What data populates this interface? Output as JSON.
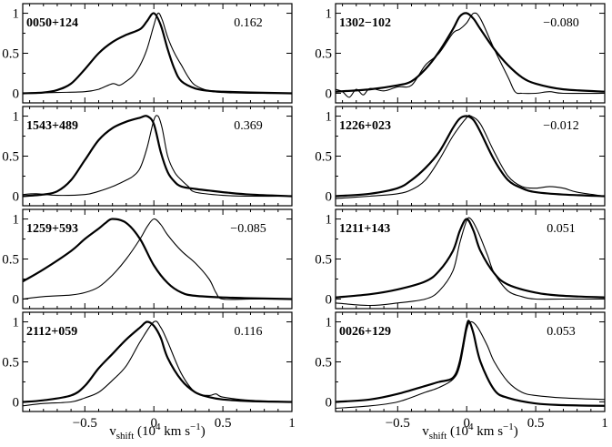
{
  "chart_data": [
    {
      "type": "line",
      "object": "0050+124",
      "value_label": "0.162",
      "series": [
        {
          "name": "thick",
          "x": [
            -0.95,
            -0.8,
            -0.7,
            -0.6,
            -0.5,
            -0.4,
            -0.3,
            -0.2,
            -0.1,
            -0.05,
            0.0,
            0.05,
            0.1,
            0.15,
            0.2,
            0.3,
            0.4,
            0.5,
            0.7,
            1.0
          ],
          "y": [
            0.0,
            0.01,
            0.04,
            0.12,
            0.3,
            0.5,
            0.64,
            0.73,
            0.8,
            0.9,
            1.0,
            0.85,
            0.55,
            0.3,
            0.15,
            0.06,
            0.03,
            0.02,
            0.01,
            0.0
          ]
        },
        {
          "name": "thin",
          "x": [
            -0.95,
            -0.7,
            -0.5,
            -0.4,
            -0.3,
            -0.25,
            -0.2,
            -0.15,
            -0.1,
            -0.05,
            0.0,
            0.03,
            0.06,
            0.1,
            0.15,
            0.2,
            0.25,
            0.3,
            0.4,
            0.5,
            0.7,
            1.0
          ],
          "y": [
            0.0,
            0.01,
            0.02,
            0.05,
            0.12,
            0.1,
            0.15,
            0.22,
            0.35,
            0.55,
            0.85,
            1.0,
            0.92,
            0.7,
            0.5,
            0.35,
            0.2,
            0.1,
            0.03,
            0.01,
            0.0,
            0.0
          ]
        }
      ],
      "xlim": [
        -0.95,
        1.0
      ],
      "ylim": [
        -0.12,
        1.12
      ]
    },
    {
      "type": "line",
      "object": "1543+489",
      "value_label": "0.369",
      "series": [
        {
          "name": "thick",
          "x": [
            -0.95,
            -0.8,
            -0.7,
            -0.6,
            -0.5,
            -0.4,
            -0.3,
            -0.2,
            -0.1,
            -0.05,
            0.0,
            0.05,
            0.1,
            0.15,
            0.2,
            0.3,
            0.4,
            0.5,
            0.7,
            1.0
          ],
          "y": [
            0.0,
            0.02,
            0.06,
            0.2,
            0.45,
            0.7,
            0.85,
            0.93,
            0.98,
            1.0,
            0.9,
            0.55,
            0.3,
            0.18,
            0.12,
            0.09,
            0.07,
            0.05,
            0.02,
            0.0
          ]
        },
        {
          "name": "thin",
          "x": [
            -0.95,
            -0.85,
            -0.7,
            -0.5,
            -0.4,
            -0.3,
            -0.2,
            -0.15,
            -0.1,
            -0.05,
            0.0,
            0.03,
            0.06,
            0.1,
            0.15,
            0.2,
            0.25,
            0.3,
            0.5,
            0.7,
            1.0
          ],
          "y": [
            0.02,
            0.03,
            0.01,
            0.02,
            0.06,
            0.12,
            0.2,
            0.25,
            0.35,
            0.6,
            0.95,
            1.0,
            0.85,
            0.5,
            0.3,
            0.2,
            0.12,
            0.05,
            0.01,
            0.0,
            0.0
          ]
        }
      ],
      "xlim": [
        -0.95,
        1.0
      ],
      "ylim": [
        -0.12,
        1.12
      ]
    },
    {
      "type": "line",
      "object": "1259+593",
      "value_label": "−0.085",
      "series": [
        {
          "name": "thick",
          "x": [
            -0.95,
            -0.8,
            -0.6,
            -0.5,
            -0.4,
            -0.35,
            -0.3,
            -0.2,
            -0.1,
            0.0,
            0.1,
            0.2,
            0.3,
            0.5,
            0.7,
            1.0
          ],
          "y": [
            0.22,
            0.37,
            0.6,
            0.75,
            0.88,
            0.95,
            1.0,
            0.95,
            0.75,
            0.42,
            0.2,
            0.08,
            0.04,
            0.02,
            0.01,
            0.0
          ]
        },
        {
          "name": "thin",
          "x": [
            -0.95,
            -0.8,
            -0.6,
            -0.5,
            -0.4,
            -0.3,
            -0.2,
            -0.1,
            -0.05,
            0.0,
            0.05,
            0.1,
            0.2,
            0.3,
            0.4,
            0.45,
            0.5,
            0.7,
            1.0
          ],
          "y": [
            0.0,
            0.03,
            0.05,
            0.08,
            0.15,
            0.3,
            0.5,
            0.75,
            0.9,
            1.0,
            0.93,
            0.8,
            0.6,
            0.45,
            0.25,
            0.08,
            0.0,
            0.0,
            0.0
          ]
        }
      ],
      "xlim": [
        -0.95,
        1.0
      ],
      "ylim": [
        -0.12,
        1.12
      ]
    },
    {
      "type": "line",
      "object": "2112+059",
      "value_label": "0.116",
      "series": [
        {
          "name": "thick",
          "x": [
            -0.95,
            -0.8,
            -0.6,
            -0.5,
            -0.4,
            -0.3,
            -0.2,
            -0.1,
            -0.05,
            0.0,
            0.05,
            0.1,
            0.2,
            0.3,
            0.4,
            0.5,
            0.7,
            1.0
          ],
          "y": [
            0.0,
            0.02,
            0.08,
            0.2,
            0.42,
            0.6,
            0.78,
            0.93,
            1.0,
            0.95,
            0.8,
            0.55,
            0.27,
            0.12,
            0.06,
            0.03,
            0.01,
            0.0
          ]
        },
        {
          "name": "thin",
          "x": [
            -0.95,
            -0.8,
            -0.6,
            -0.5,
            -0.4,
            -0.3,
            -0.2,
            -0.1,
            0.0,
            0.05,
            0.1,
            0.2,
            0.3,
            0.4,
            0.45,
            0.5,
            0.7,
            1.0
          ],
          "y": [
            -0.05,
            -0.02,
            0.0,
            0.05,
            0.12,
            0.27,
            0.45,
            0.75,
            1.0,
            0.93,
            0.75,
            0.35,
            0.12,
            0.08,
            0.1,
            0.06,
            0.02,
            0.0
          ]
        }
      ],
      "xlim": [
        -0.95,
        1.0
      ],
      "ylim": [
        -0.12,
        1.12
      ]
    },
    {
      "type": "line",
      "object": "1302−102",
      "value_label": "−0.080",
      "series": [
        {
          "name": "thick",
          "x": [
            -0.95,
            -0.7,
            -0.5,
            -0.4,
            -0.3,
            -0.2,
            -0.1,
            -0.05,
            0.0,
            0.05,
            0.1,
            0.2,
            0.3,
            0.4,
            0.5,
            0.7,
            1.0
          ],
          "y": [
            0.02,
            0.05,
            0.1,
            0.15,
            0.3,
            0.52,
            0.8,
            0.96,
            1.0,
            0.93,
            0.8,
            0.55,
            0.35,
            0.2,
            0.12,
            0.05,
            0.02
          ]
        },
        {
          "name": "thin",
          "x": [
            -0.95,
            -0.9,
            -0.85,
            -0.8,
            -0.75,
            -0.7,
            -0.6,
            -0.5,
            -0.4,
            -0.3,
            -0.2,
            -0.1,
            -0.05,
            0.0,
            0.05,
            0.1,
            0.2,
            0.3,
            0.35,
            0.4,
            0.5,
            0.6,
            0.7,
            1.0
          ],
          "y": [
            0.05,
            0.02,
            -0.05,
            0.05,
            -0.02,
            0.06,
            0.03,
            0.08,
            0.1,
            0.35,
            0.5,
            0.75,
            0.8,
            0.88,
            1.0,
            0.93,
            0.55,
            0.2,
            0.02,
            0.0,
            0.0,
            0.02,
            0.0,
            0.0
          ]
        }
      ],
      "xlim": [
        -0.95,
        1.0
      ],
      "ylim": [
        -0.12,
        1.12
      ]
    },
    {
      "type": "line",
      "object": "1226+023",
      "value_label": "−0.012",
      "series": [
        {
          "name": "thick",
          "x": [
            -0.95,
            -0.7,
            -0.5,
            -0.4,
            -0.3,
            -0.2,
            -0.1,
            -0.05,
            0.0,
            0.05,
            0.1,
            0.2,
            0.3,
            0.4,
            0.5,
            0.7,
            1.0
          ],
          "y": [
            0.0,
            0.03,
            0.1,
            0.2,
            0.35,
            0.55,
            0.85,
            0.97,
            1.0,
            0.95,
            0.8,
            0.45,
            0.2,
            0.1,
            0.05,
            0.02,
            0.0
          ]
        },
        {
          "name": "thin",
          "x": [
            -0.95,
            -0.7,
            -0.5,
            -0.4,
            -0.3,
            -0.2,
            -0.1,
            0.0,
            0.03,
            0.1,
            0.2,
            0.3,
            0.4,
            0.5,
            0.6,
            0.7,
            0.8,
            1.0
          ],
          "y": [
            -0.03,
            0.0,
            0.03,
            0.08,
            0.2,
            0.45,
            0.75,
            0.98,
            1.0,
            0.9,
            0.55,
            0.25,
            0.12,
            0.1,
            0.12,
            0.1,
            0.05,
            0.0
          ]
        }
      ],
      "xlim": [
        -0.95,
        1.0
      ],
      "ylim": [
        -0.12,
        1.12
      ]
    },
    {
      "type": "line",
      "object": "1211+143",
      "value_label": "0.051",
      "series": [
        {
          "name": "thick",
          "x": [
            -0.95,
            -0.7,
            -0.5,
            -0.3,
            -0.2,
            -0.1,
            -0.05,
            0.0,
            0.05,
            0.1,
            0.2,
            0.3,
            0.5,
            0.7,
            1.0
          ],
          "y": [
            0.02,
            0.06,
            0.12,
            0.22,
            0.35,
            0.6,
            0.85,
            1.0,
            0.85,
            0.6,
            0.32,
            0.18,
            0.08,
            0.04,
            0.02
          ]
        },
        {
          "name": "thin",
          "x": [
            -0.95,
            -0.7,
            -0.5,
            -0.3,
            -0.2,
            -0.1,
            -0.05,
            0.0,
            0.03,
            0.08,
            0.15,
            0.2,
            0.3,
            0.4,
            0.5,
            0.7,
            1.0
          ],
          "y": [
            -0.05,
            -0.08,
            -0.05,
            0.0,
            0.1,
            0.35,
            0.7,
            0.98,
            1.0,
            0.85,
            0.55,
            0.32,
            0.1,
            0.03,
            0.0,
            0.0,
            0.0
          ]
        }
      ],
      "xlim": [
        -0.95,
        1.0
      ],
      "ylim": [
        -0.12,
        1.12
      ]
    },
    {
      "type": "line",
      "object": "0026+129",
      "value_label": "0.053",
      "series": [
        {
          "name": "thick",
          "x": [
            -0.95,
            -0.7,
            -0.5,
            -0.3,
            -0.2,
            -0.1,
            -0.05,
            0.0,
            0.02,
            0.05,
            0.1,
            0.2,
            0.3,
            0.5,
            0.7,
            1.0
          ],
          "y": [
            0.0,
            0.03,
            0.1,
            0.2,
            0.25,
            0.3,
            0.5,
            0.95,
            1.0,
            0.85,
            0.5,
            0.15,
            0.05,
            -0.02,
            -0.04,
            -0.05
          ]
        },
        {
          "name": "thin",
          "x": [
            -0.95,
            -0.7,
            -0.5,
            -0.3,
            -0.2,
            -0.1,
            -0.05,
            0.0,
            0.03,
            0.08,
            0.15,
            0.2,
            0.3,
            0.4,
            0.5,
            0.7,
            1.0
          ],
          "y": [
            -0.08,
            -0.05,
            0.0,
            0.12,
            0.18,
            0.28,
            0.45,
            0.9,
            1.0,
            0.93,
            0.7,
            0.5,
            0.25,
            0.12,
            0.08,
            0.05,
            0.03
          ]
        }
      ],
      "xlim": [
        -0.95,
        1.0
      ],
      "ylim": [
        -0.12,
        1.12
      ]
    }
  ],
  "axes": {
    "yticks": [
      0,
      0.5,
      1
    ],
    "ytick_labels": [
      "0",
      "0.5",
      "1"
    ],
    "xticks": [
      -0.5,
      0,
      0.5,
      1
    ],
    "xtick_labels": [
      "−0.5",
      "0",
      "0.5",
      "1"
    ],
    "xlabel": {
      "main": "v",
      "sub": "shift",
      "paren_open": " (10",
      "sup": "4",
      "units": " km s",
      "sup2": "−1",
      "paren_close": ")"
    }
  }
}
